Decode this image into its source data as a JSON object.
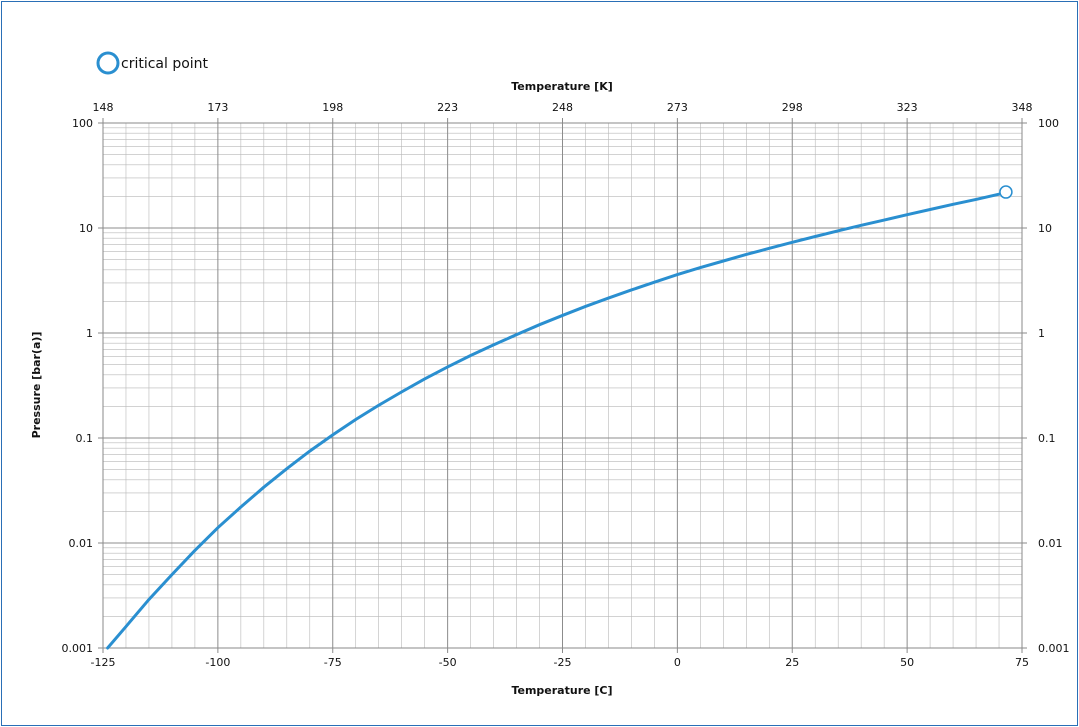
{
  "chart_data": {
    "type": "line",
    "legend": {
      "placement": "top-left",
      "entries": [
        {
          "label": "critical point",
          "marker": "open-circle"
        }
      ]
    },
    "xlabel_bottom": "Temperature [C]",
    "xlabel_top": "Temperature [K]",
    "ylabel": "Pressure [bar(a)]",
    "xlim": [
      -125,
      75
    ],
    "ylim": [
      0.001,
      100
    ],
    "y_scale": "log",
    "grid": true,
    "x_ticks_bottom": [
      "-125",
      "-100",
      "-75",
      "-50",
      "-25",
      "0",
      "25",
      "50",
      "75"
    ],
    "x_ticks_top": [
      "148",
      "173",
      "198",
      "223",
      "248",
      "273",
      "298",
      "323",
      "348"
    ],
    "y_ticks": [
      "0.001",
      "0.01",
      "0.1",
      "1",
      "10",
      "100"
    ],
    "series": [
      {
        "x": [
          -124,
          -120,
          -115,
          -110,
          -105,
          -100,
          -95,
          -90,
          -85,
          -80,
          -75,
          -70,
          -65,
          -60,
          -55,
          -50,
          -45,
          -40,
          -35,
          -30,
          -25,
          -20,
          -15,
          -10,
          -5,
          0,
          5,
          10,
          15,
          20,
          25,
          30,
          35,
          40,
          45,
          50,
          55,
          60,
          65,
          70,
          71.5
        ],
        "y": [
          0.001,
          0.0016,
          0.0029,
          0.005,
          0.0085,
          0.014,
          0.022,
          0.034,
          0.051,
          0.075,
          0.107,
          0.15,
          0.205,
          0.275,
          0.365,
          0.475,
          0.61,
          0.77,
          0.965,
          1.2,
          1.47,
          1.79,
          2.15,
          2.57,
          3.05,
          3.6,
          4.2,
          4.85,
          5.6,
          6.4,
          7.3,
          8.3,
          9.4,
          10.6,
          11.9,
          13.4,
          15.0,
          16.8,
          18.7,
          21.0,
          22.0
        ]
      }
    ],
    "critical_point": {
      "x": 71.5,
      "y": 22.0
    },
    "colors": {
      "curve": "#2a8fd0",
      "grid": "#b8b8b8",
      "frame": "#2a6fb6"
    }
  }
}
